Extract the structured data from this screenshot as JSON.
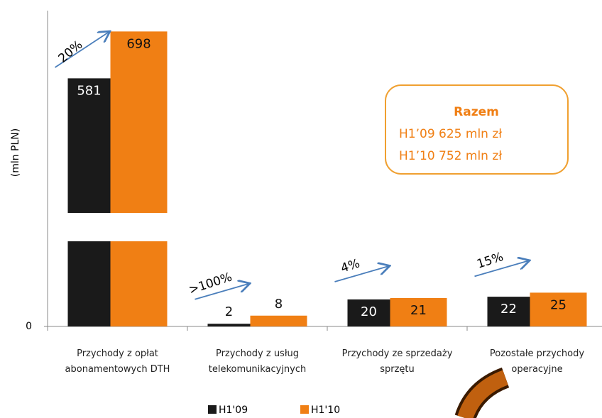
{
  "chart_data": {
    "type": "bar",
    "y_label": "(mln PLN)",
    "categories": [
      "Przychody z opłat abonamentowych DTH",
      "Przychody z usług telekomunikacyjnych",
      "Przychody ze sprzedaży sprzętu",
      "Pozostałe przychody operacyjne"
    ],
    "series": [
      {
        "name": "H1'09",
        "color": "#1a1a1a",
        "values": [
          581,
          2,
          20,
          22
        ]
      },
      {
        "name": "H1'10",
        "color": "#f07f14",
        "values": [
          698,
          8,
          21,
          25
        ]
      }
    ],
    "annotations": [
      "20%",
      ">100%",
      "4%",
      "15%"
    ],
    "ylim": [
      0,
      750
    ],
    "ybreak": [
      63,
      245
    ],
    "yticks": [
      0
    ],
    "legend": "bottom",
    "textbox": {
      "title": "Razem",
      "lines": [
        "H1’09  625 mln zł",
        "H1’10  752 mln zł"
      ]
    }
  }
}
